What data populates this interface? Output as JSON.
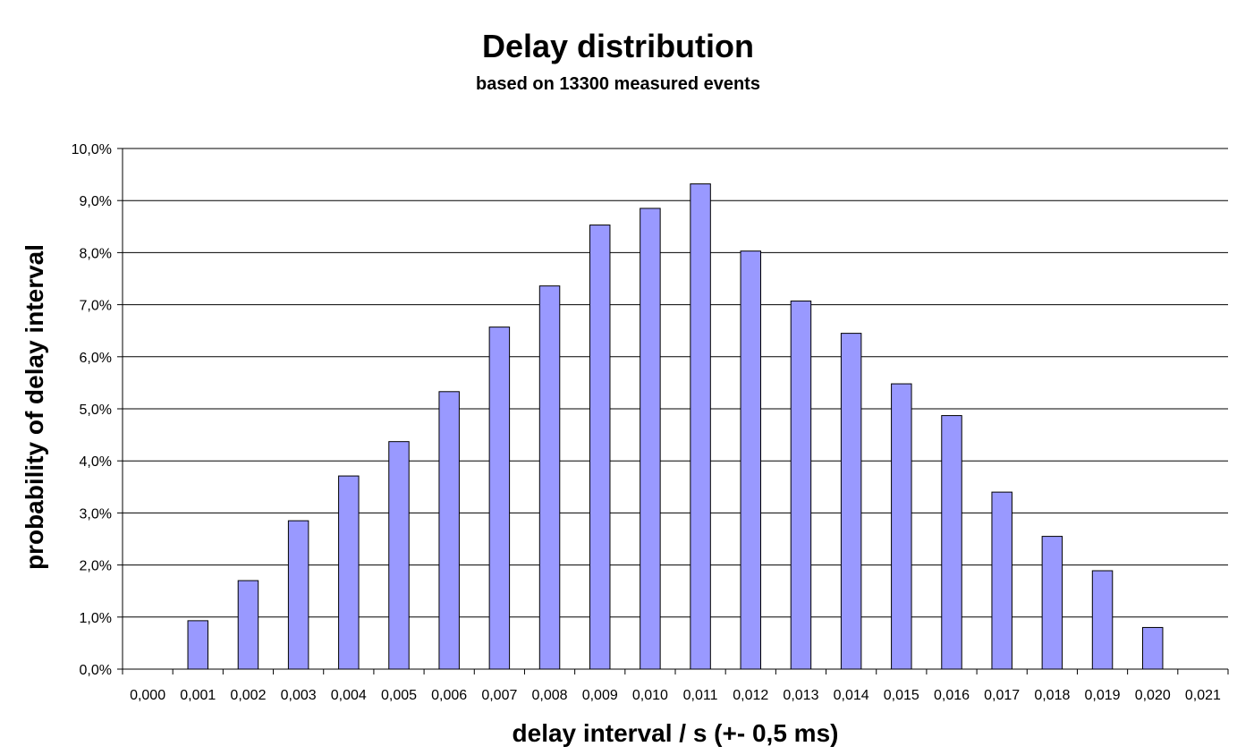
{
  "chart_data": {
    "type": "bar",
    "title": "Delay distribution",
    "subtitle": "based on 13300 measured events",
    "xlabel": "delay interval / s (+- 0,5 ms)",
    "ylabel": "probability of delay interval",
    "categories": [
      "0,000",
      "0,001",
      "0,002",
      "0,003",
      "0,004",
      "0,005",
      "0,006",
      "0,007",
      "0,008",
      "0,009",
      "0,010",
      "0,011",
      "0,012",
      "0,013",
      "0,014",
      "0,015",
      "0,016",
      "0,017",
      "0,018",
      "0,019",
      "0,020",
      "0,021"
    ],
    "values": [
      0.0,
      0.93,
      1.7,
      2.85,
      3.71,
      4.37,
      5.33,
      6.57,
      7.36,
      8.53,
      8.85,
      9.32,
      8.03,
      7.07,
      6.45,
      5.48,
      4.87,
      3.4,
      2.55,
      1.89,
      0.8,
      0.0
    ],
    "ylim": [
      0,
      10
    ],
    "yticks": [
      "0,0%",
      "1,0%",
      "2,0%",
      "3,0%",
      "4,0%",
      "5,0%",
      "6,0%",
      "7,0%",
      "8,0%",
      "9,0%",
      "10,0%"
    ],
    "grid": true,
    "legend": "none",
    "colors": {
      "bar_fill": "#9999ff",
      "bar_stroke": "#000000",
      "grid": "#000000"
    }
  }
}
